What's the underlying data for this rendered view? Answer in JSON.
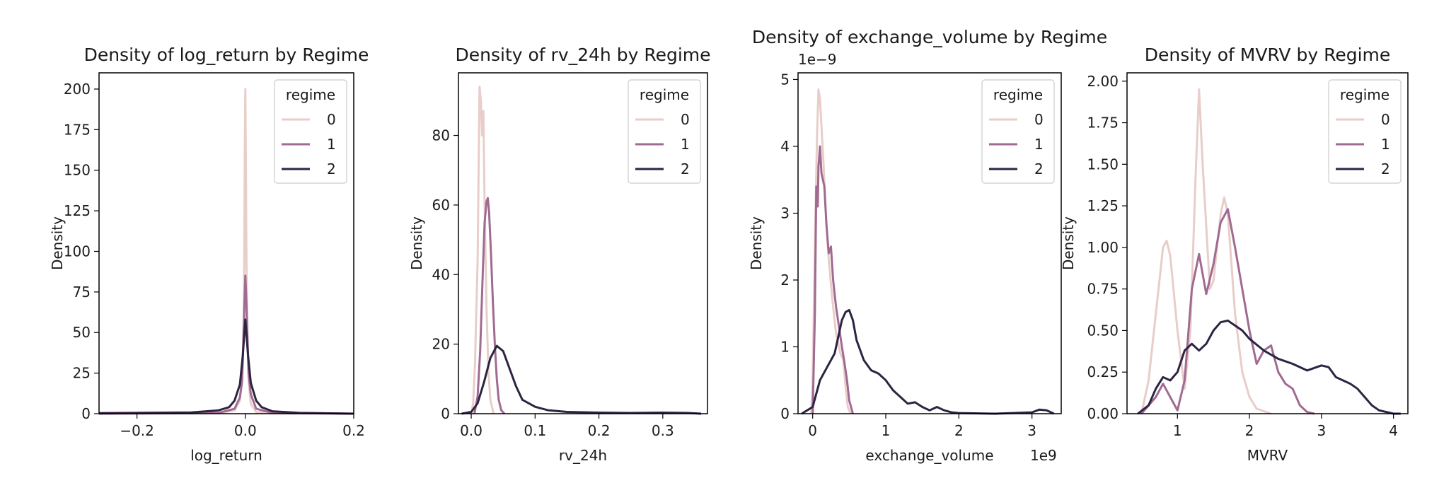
{
  "chart_data": [
    {
      "type": "line",
      "title": "Density of log_return by Regime",
      "xlabel": "log_return",
      "ylabel": "Density",
      "xlim": [
        -0.27,
        0.2
      ],
      "ylim": [
        0,
        210
      ],
      "xticks": [
        -0.2,
        0.0,
        0.2
      ],
      "xtick_labels": [
        "−0.2",
        "0.0",
        "0.2"
      ],
      "yticks": [
        0,
        25,
        50,
        75,
        100,
        125,
        150,
        175,
        200
      ],
      "ytick_labels": [
        "0",
        "25",
        "50",
        "75",
        "100",
        "125",
        "150",
        "175",
        "200"
      ],
      "x_offset_label": "",
      "y_offset_label": "",
      "legend": {
        "title": "regime",
        "position": "top-right",
        "entries": [
          "0",
          "1",
          "2"
        ]
      },
      "series": [
        {
          "name": "0",
          "color": "#e8cdc9",
          "x": [
            -0.27,
            -0.05,
            -0.02,
            -0.01,
            -0.005,
            -0.003,
            -0.002,
            -0.001,
            0.0,
            0.001,
            0.002,
            0.004,
            0.006,
            0.01,
            0.02,
            0.05,
            0.2
          ],
          "y": [
            0,
            0.3,
            2,
            8,
            30,
            60,
            100,
            160,
            200,
            150,
            95,
            45,
            20,
            6,
            1,
            0.2,
            0
          ]
        },
        {
          "name": "1",
          "color": "#a06a91",
          "x": [
            -0.27,
            -0.05,
            -0.02,
            -0.01,
            -0.006,
            -0.004,
            -0.002,
            0.0,
            0.002,
            0.004,
            0.006,
            0.01,
            0.02,
            0.05,
            0.2
          ],
          "y": [
            0,
            0.5,
            3,
            10,
            20,
            40,
            65,
            85,
            68,
            45,
            25,
            12,
            3,
            0.5,
            0
          ]
        },
        {
          "name": "2",
          "color": "#2d2342",
          "x": [
            -0.27,
            -0.1,
            -0.05,
            -0.03,
            -0.02,
            -0.01,
            -0.005,
            0.0,
            0.005,
            0.01,
            0.02,
            0.03,
            0.05,
            0.1,
            0.2
          ],
          "y": [
            0.3,
            0.8,
            2,
            4,
            8,
            18,
            35,
            58,
            36,
            19,
            8,
            4,
            1.5,
            0.5,
            0
          ]
        }
      ]
    },
    {
      "type": "line",
      "title": "Density of rv_24h by Regime",
      "xlabel": "rv_24h",
      "ylabel": "Density",
      "xlim": [
        -0.02,
        0.37
      ],
      "ylim": [
        0,
        98
      ],
      "xticks": [
        0.0,
        0.1,
        0.2,
        0.3
      ],
      "xtick_labels": [
        "0.0",
        "0.1",
        "0.2",
        "0.3"
      ],
      "yticks": [
        0,
        20,
        40,
        60,
        80
      ],
      "ytick_labels": [
        "0",
        "20",
        "40",
        "60",
        "80"
      ],
      "x_offset_label": "",
      "y_offset_label": "",
      "legend": {
        "title": "regime",
        "position": "top-right",
        "entries": [
          "0",
          "1",
          "2"
        ]
      },
      "series": [
        {
          "name": "0",
          "color": "#e8cdc9",
          "x": [
            0.0,
            0.003,
            0.006,
            0.008,
            0.01,
            0.012,
            0.013,
            0.015,
            0.017,
            0.019,
            0.021,
            0.024,
            0.027,
            0.03,
            0.035
          ],
          "y": [
            0,
            3,
            15,
            30,
            44,
            78,
            94,
            90,
            80,
            87,
            60,
            30,
            12,
            4,
            0
          ]
        },
        {
          "name": "1",
          "color": "#a06a91",
          "x": [
            0.005,
            0.01,
            0.014,
            0.018,
            0.021,
            0.024,
            0.026,
            0.028,
            0.031,
            0.034,
            0.037,
            0.04,
            0.043,
            0.047,
            0.052
          ],
          "y": [
            0,
            5,
            18,
            40,
            55,
            61,
            62,
            58,
            46,
            32,
            20,
            10,
            4,
            1,
            0
          ]
        },
        {
          "name": "2",
          "color": "#2d2342",
          "x": [
            -0.015,
            0.0,
            0.01,
            0.02,
            0.03,
            0.04,
            0.05,
            0.06,
            0.07,
            0.08,
            0.1,
            0.12,
            0.15,
            0.2,
            0.25,
            0.3,
            0.34,
            0.36
          ],
          "y": [
            0,
            0.5,
            3,
            9,
            16,
            19.5,
            18,
            13,
            8,
            4,
            2,
            1,
            0.5,
            0.3,
            0.2,
            0.3,
            0.2,
            0
          ]
        }
      ]
    },
    {
      "type": "line",
      "title": "Density of exchange_volume by Regime",
      "xlabel": "exchange_volume",
      "ylabel": "Density",
      "xlim": [
        -0.2,
        3.4
      ],
      "ylim": [
        0,
        5.1
      ],
      "xticks": [
        0,
        1,
        2,
        3
      ],
      "xtick_labels": [
        "0",
        "1",
        "2",
        "3"
      ],
      "yticks": [
        0,
        1,
        2,
        3,
        4,
        5
      ],
      "ytick_labels": [
        "0",
        "1",
        "2",
        "3",
        "4",
        "5"
      ],
      "x_offset_label": "1e9",
      "y_offset_label": "1e−9",
      "legend": {
        "title": "regime",
        "position": "top-right",
        "entries": [
          "0",
          "1",
          "2"
        ]
      },
      "series": [
        {
          "name": "0",
          "color": "#e8cdc9",
          "x": [
            -0.02,
            0.0,
            0.03,
            0.06,
            0.08,
            0.1,
            0.12,
            0.15,
            0.18,
            0.22,
            0.27,
            0.32,
            0.38,
            0.42,
            0.45,
            0.48,
            0.52
          ],
          "y": [
            0,
            0.5,
            2.5,
            4.2,
            4.85,
            4.7,
            4.3,
            3.7,
            3.0,
            2.3,
            1.7,
            1.2,
            0.9,
            0.8,
            0.4,
            0.1,
            0
          ]
        },
        {
          "name": "1",
          "color": "#a06a91",
          "x": [
            0.0,
            0.03,
            0.05,
            0.07,
            0.08,
            0.1,
            0.12,
            0.14,
            0.16,
            0.19,
            0.22,
            0.25,
            0.28,
            0.32,
            0.36,
            0.4,
            0.43,
            0.47,
            0.5,
            0.55
          ],
          "y": [
            0,
            1.5,
            3.4,
            3.1,
            3.7,
            4.0,
            3.6,
            3.5,
            3.4,
            2.8,
            2.4,
            2.5,
            2.0,
            1.6,
            1.3,
            1.0,
            0.8,
            0.5,
            0.2,
            0
          ]
        },
        {
          "name": "2",
          "color": "#2d2342",
          "x": [
            -0.15,
            0.0,
            0.1,
            0.2,
            0.3,
            0.4,
            0.45,
            0.5,
            0.55,
            0.6,
            0.7,
            0.8,
            0.9,
            1.0,
            1.1,
            1.2,
            1.3,
            1.4,
            1.5,
            1.6,
            1.7,
            1.8,
            1.9,
            2.0,
            2.5,
            3.0,
            3.1,
            3.2,
            3.3
          ],
          "y": [
            0,
            0.1,
            0.5,
            0.7,
            0.9,
            1.4,
            1.52,
            1.55,
            1.4,
            1.1,
            0.8,
            0.65,
            0.6,
            0.5,
            0.35,
            0.25,
            0.15,
            0.17,
            0.1,
            0.05,
            0.1,
            0.05,
            0.02,
            0.01,
            0.0,
            0.02,
            0.06,
            0.05,
            0
          ]
        }
      ]
    },
    {
      "type": "line",
      "title": "Density of MVRV by Regime",
      "xlabel": "MVRV",
      "ylabel": "Density",
      "xlim": [
        0.3,
        4.2
      ],
      "ylim": [
        0,
        2.05
      ],
      "xticks": [
        1,
        2,
        3,
        4
      ],
      "xtick_labels": [
        "1",
        "2",
        "3",
        "4"
      ],
      "yticks": [
        0,
        0.25,
        0.5,
        0.75,
        1.0,
        1.25,
        1.5,
        1.75,
        2.0
      ],
      "ytick_labels": [
        "0.00",
        "0.25",
        "0.50",
        "0.75",
        "1.00",
        "1.25",
        "1.50",
        "1.75",
        "2.00"
      ],
      "x_offset_label": "",
      "y_offset_label": "",
      "legend": {
        "title": "regime",
        "position": "top-right",
        "entries": [
          "0",
          "1",
          "2"
        ]
      },
      "series": [
        {
          "name": "0",
          "color": "#e8cdc9",
          "x": [
            0.5,
            0.6,
            0.7,
            0.8,
            0.85,
            0.9,
            1.0,
            1.1,
            1.18,
            1.25,
            1.3,
            1.35,
            1.45,
            1.5,
            1.6,
            1.65,
            1.7,
            1.8,
            1.9,
            2.0,
            2.1,
            2.3
          ],
          "y": [
            0,
            0.2,
            0.6,
            1.0,
            1.04,
            0.95,
            0.5,
            0.15,
            0.5,
            1.4,
            1.95,
            1.5,
            0.75,
            0.8,
            1.2,
            1.3,
            1.2,
            0.6,
            0.25,
            0.1,
            0.03,
            0
          ]
        },
        {
          "name": "1",
          "color": "#a06a91",
          "x": [
            0.5,
            0.7,
            0.8,
            0.9,
            1.0,
            1.1,
            1.2,
            1.3,
            1.4,
            1.5,
            1.6,
            1.7,
            1.8,
            1.9,
            2.0,
            2.1,
            2.2,
            2.3,
            2.4,
            2.5,
            2.6,
            2.7,
            2.8,
            2.9
          ],
          "y": [
            0,
            0.1,
            0.18,
            0.1,
            0.02,
            0.2,
            0.75,
            0.96,
            0.72,
            0.9,
            1.15,
            1.23,
            1.0,
            0.75,
            0.5,
            0.3,
            0.38,
            0.41,
            0.25,
            0.18,
            0.15,
            0.05,
            0.01,
            0
          ]
        },
        {
          "name": "2",
          "color": "#2d2342",
          "x": [
            0.45,
            0.6,
            0.7,
            0.8,
            0.9,
            1.0,
            1.1,
            1.2,
            1.3,
            1.4,
            1.5,
            1.6,
            1.7,
            1.8,
            1.9,
            2.0,
            2.2,
            2.4,
            2.6,
            2.8,
            3.0,
            3.1,
            3.2,
            3.3,
            3.4,
            3.5,
            3.6,
            3.7,
            3.8,
            3.9,
            4.0,
            4.1
          ],
          "y": [
            0,
            0.05,
            0.15,
            0.22,
            0.2,
            0.25,
            0.38,
            0.42,
            0.38,
            0.42,
            0.5,
            0.55,
            0.56,
            0.53,
            0.5,
            0.45,
            0.38,
            0.33,
            0.3,
            0.26,
            0.29,
            0.28,
            0.22,
            0.2,
            0.18,
            0.15,
            0.1,
            0.05,
            0.02,
            0.01,
            0.0,
            0
          ]
        }
      ]
    }
  ]
}
